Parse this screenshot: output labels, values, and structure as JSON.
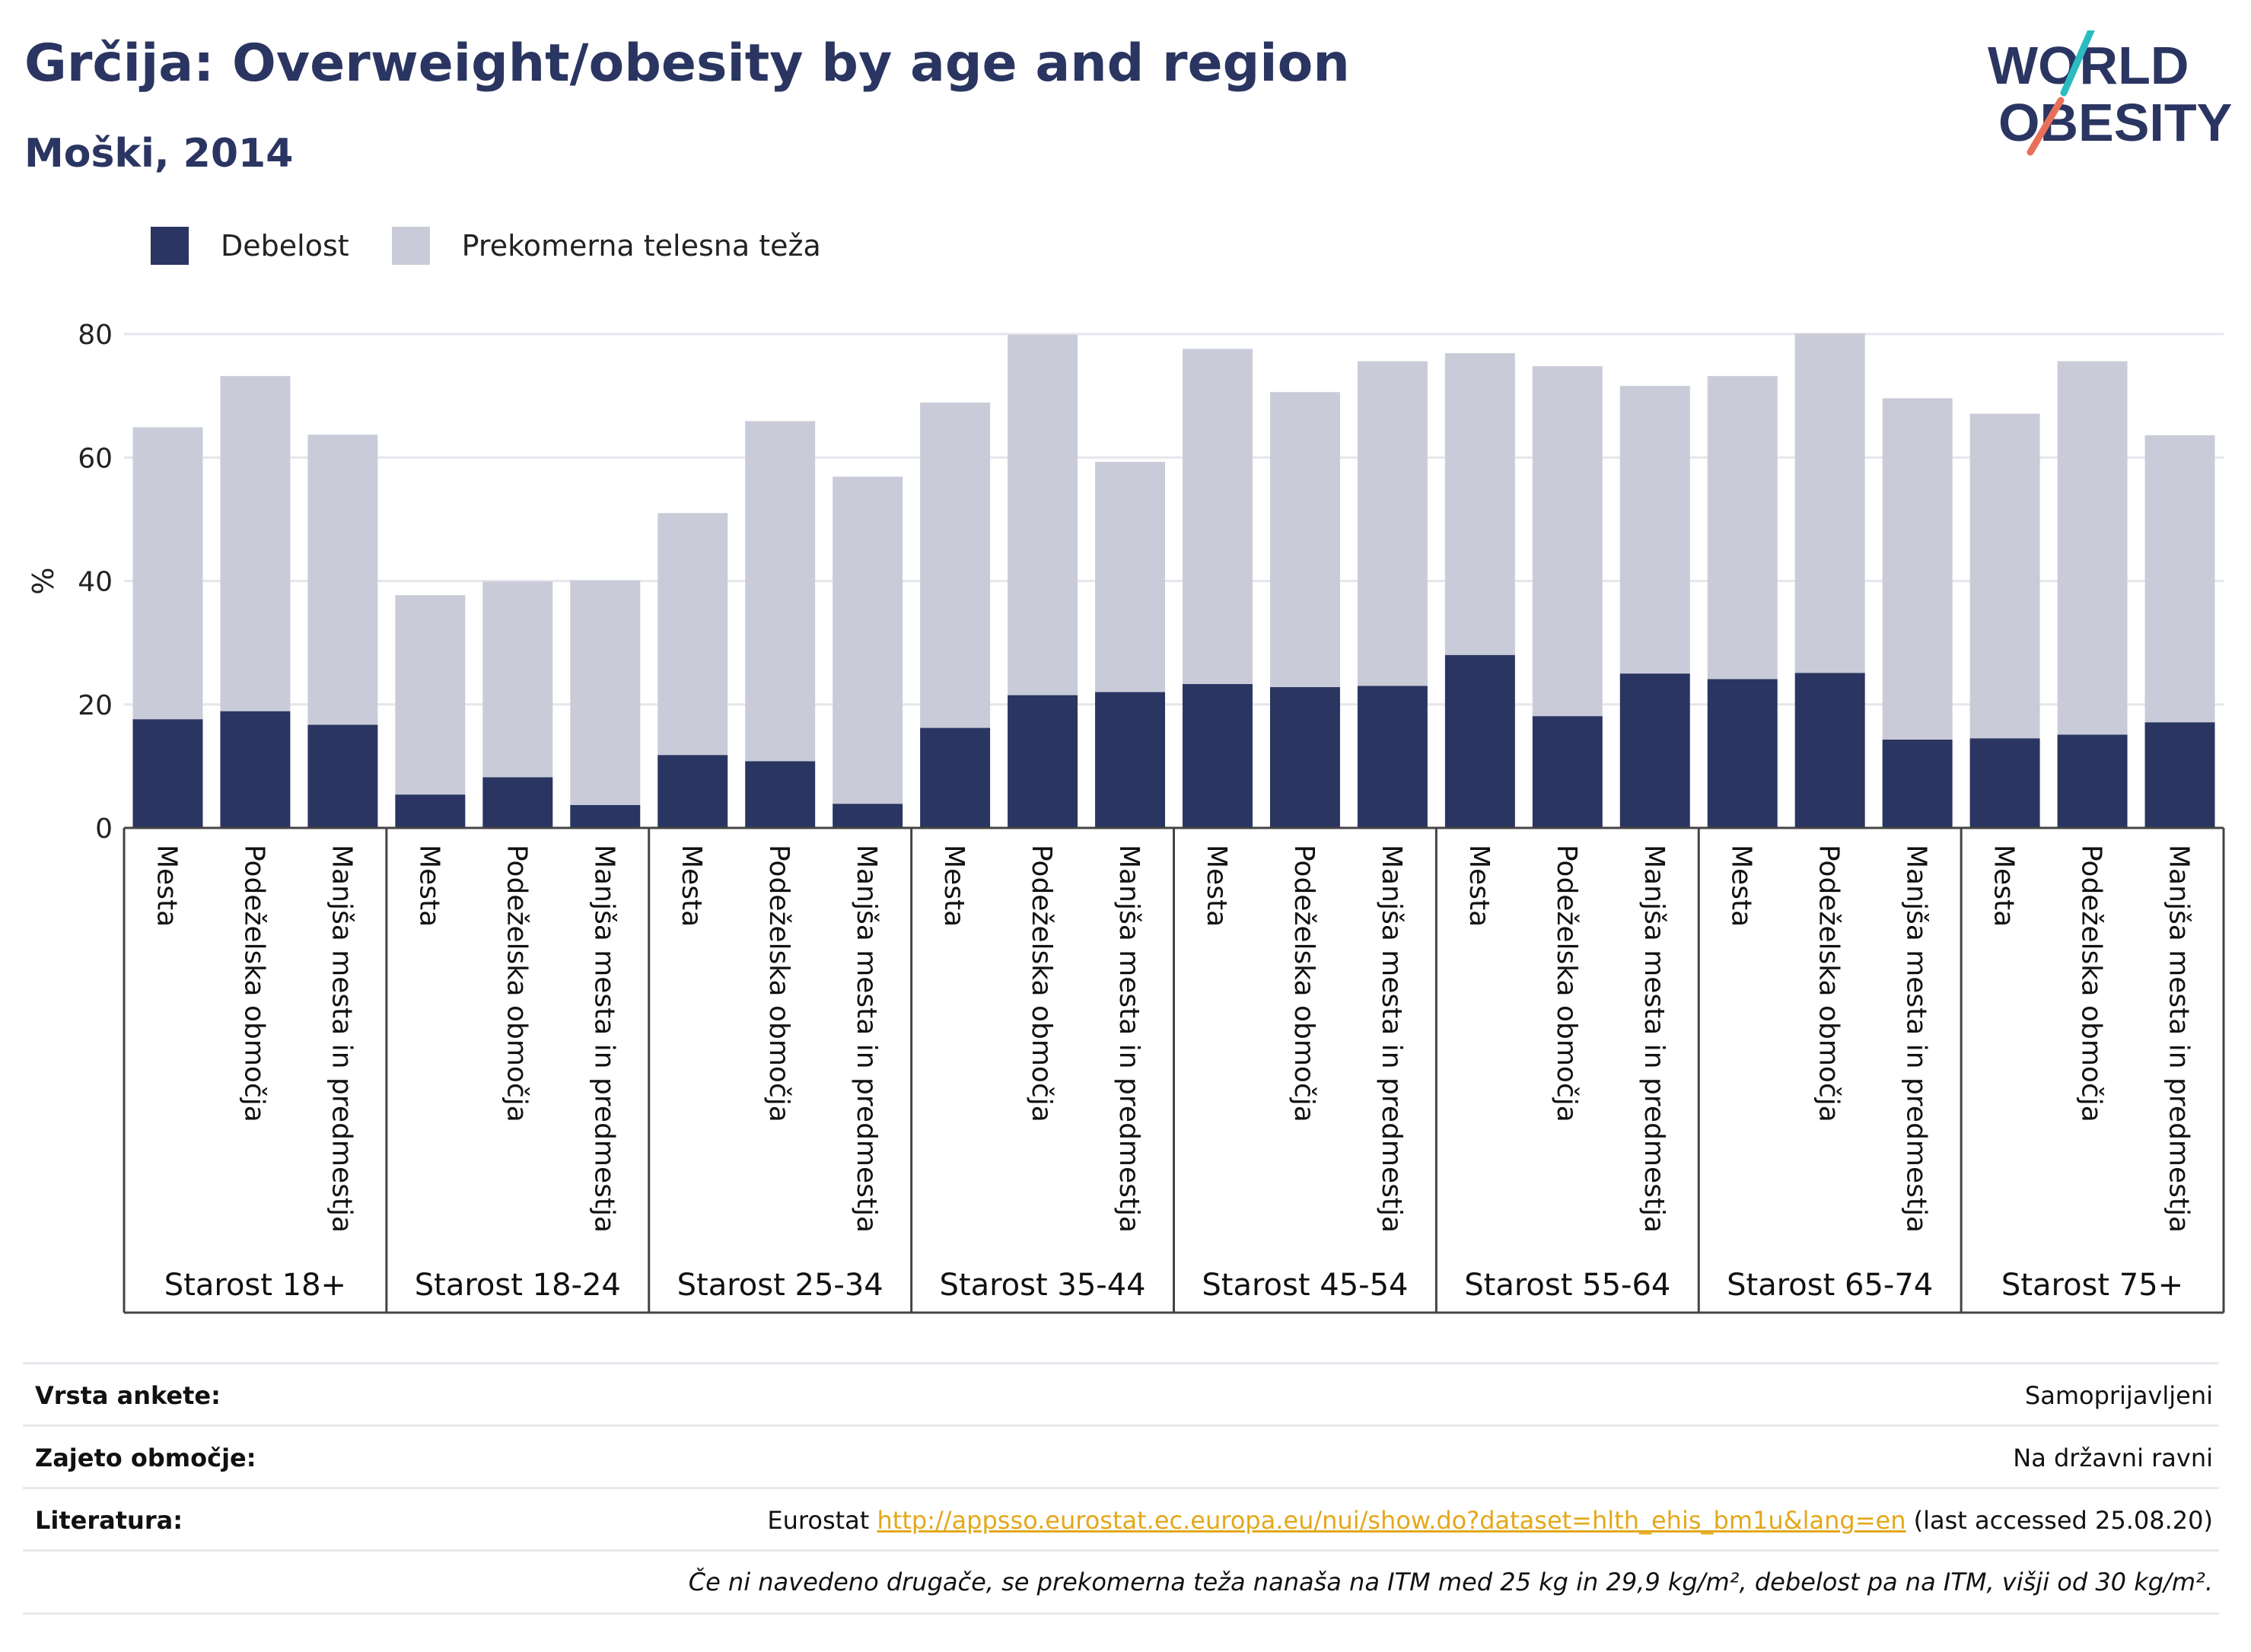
{
  "title": "Grčija: Overweight/obesity by age and region",
  "subtitle": "Moški, 2014",
  "logo": {
    "line1": "WORLD",
    "line2": "OBESITY"
  },
  "colors": {
    "obesity": "#2a3561",
    "overweight": "#c9ccd8",
    "accent_teal": "#2bbcc0",
    "accent_coral": "#e8705a",
    "link": "#e3a81a"
  },
  "legend": {
    "obesity_label": "Debelost",
    "overweight_label": "Prekomerna telesna teža"
  },
  "chart_data": {
    "type": "bar",
    "stacked": true,
    "ylabel": "%",
    "ylim": [
      0,
      80
    ],
    "yticks": [
      0,
      20,
      40,
      60,
      80
    ],
    "grid": true,
    "legend_position": "top-left",
    "groups": [
      {
        "label": "Starost 18+",
        "categories": [
          "Mesta",
          "Podeželska območja",
          "Manjša mesta in predmestja"
        ]
      },
      {
        "label": "Starost 18-24",
        "categories": [
          "Mesta",
          "Podeželska območja",
          "Manjša mesta in predmestja"
        ]
      },
      {
        "label": "Starost 25-34",
        "categories": [
          "Mesta",
          "Podeželska območja",
          "Manjša mesta in predmestja"
        ]
      },
      {
        "label": "Starost 35-44",
        "categories": [
          "Mesta",
          "Podeželska območja",
          "Manjša mesta in predmestja"
        ]
      },
      {
        "label": "Starost 45-54",
        "categories": [
          "Mesta",
          "Podeželska območja",
          "Manjša mesta in predmestja"
        ]
      },
      {
        "label": "Starost 55-64",
        "categories": [
          "Mesta",
          "Podeželska območja",
          "Manjša mesta in predmestja"
        ]
      },
      {
        "label": "Starost 65-74",
        "categories": [
          "Mesta",
          "Podeželska območja",
          "Manjša mesta in predmestja"
        ]
      },
      {
        "label": "Starost 75+",
        "categories": [
          "Mesta",
          "Podeželska območja",
          "Manjša mesta in predmestja"
        ]
      }
    ],
    "series": [
      {
        "name": "Debelost",
        "values": [
          17.6,
          18.9,
          16.7,
          5.4,
          8.2,
          3.7,
          11.8,
          10.8,
          3.9,
          16.2,
          21.5,
          22.0,
          23.3,
          22.8,
          23.0,
          28.0,
          18.1,
          25.0,
          24.1,
          25.1,
          14.3,
          14.5,
          15.1,
          17.1
        ]
      },
      {
        "name": "Prekomerna telesna teža",
        "values": [
          47.3,
          54.3,
          47.0,
          32.3,
          31.7,
          36.4,
          39.2,
          55.1,
          53.0,
          52.7,
          58.4,
          37.3,
          54.3,
          47.8,
          52.6,
          48.9,
          56.7,
          46.6,
          49.1,
          55.0,
          55.3,
          52.6,
          60.5,
          46.5
        ]
      }
    ]
  },
  "meta": [
    {
      "key": "Vrsta ankete:",
      "value": "Samoprijavljeni"
    },
    {
      "key": "Zajeto območje:",
      "value": "Na državni ravni"
    },
    {
      "key": "Literatura:",
      "value_prefix": "Eurostat ",
      "link": "http://appsso.eurostat.ec.europa.eu/nui/show.do?dataset=hlth_ehis_bm1u&lang=en",
      "value_suffix": " (last accessed 25.08.20)"
    }
  ],
  "footnote": "Če ni navedeno drugače, se prekomerna teža nanaša na ITM med 25 kg in 29,9 kg/m², debelost pa na ITM, višji od 30 kg/m²."
}
